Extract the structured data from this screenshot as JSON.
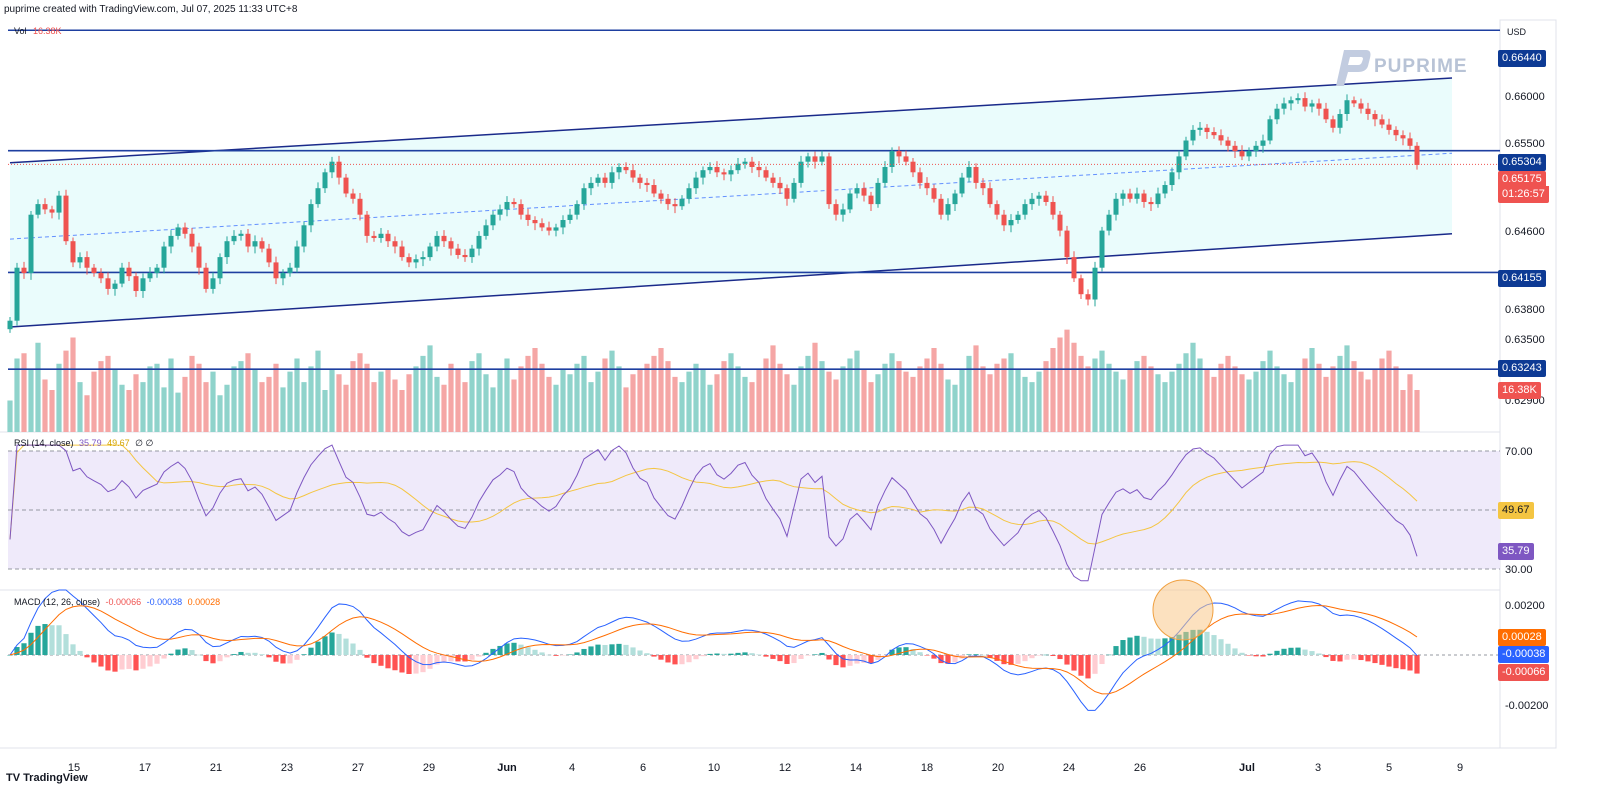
{
  "header": {
    "credit": "puprime created with TradingView.com, Jul 07, 2025 11:33 UTC+8"
  },
  "currency": "USD",
  "brand": {
    "name": "PUPRIME"
  },
  "footer": {
    "logo": "TradingView"
  },
  "volume": {
    "label": "Vol",
    "value": "16.38K",
    "badge": "16.38K"
  },
  "rsi": {
    "label": "RSI (14, close)",
    "value": "35.79",
    "ma": "49.67",
    "extra": "∅ ∅",
    "levels": [
      "70.00",
      "30.00"
    ],
    "badge_ma": "49.67",
    "badge_value": "35.79"
  },
  "macd": {
    "label": "MACD (12, 26, close)",
    "hist": "-0.00066",
    "macd": "-0.00038",
    "signal": "0.00028",
    "axis": [
      "0.00200",
      "-0.00200"
    ],
    "badge_signal": "0.00028",
    "badge_macd": "-0.00038",
    "badge_hist": "-0.00066"
  },
  "price_labels": {
    "r1": "0.66440",
    "r2": "0.65304",
    "current": "0.65175",
    "countdown": "01:26:57",
    "s1": "0.64155",
    "s2": "0.63243"
  },
  "price_axis": [
    "0.66000",
    "0.65500",
    "0.64600",
    "0.63800",
    "0.63500",
    "0.62900"
  ],
  "colors": {
    "up": "#26a69a",
    "down": "#ef5350",
    "level": "#1e3fa0",
    "rsi": "#7e57c2",
    "rsi_ma": "#f4c542",
    "macd": "#2962ff",
    "signal": "#ff6d00",
    "channel_fill": "#e6fbfb",
    "badge_blue": "#0d3a94"
  },
  "chart_data": {
    "type": "candlestick",
    "symbol": "",
    "x_ticks": [
      "15",
      "17",
      "21",
      "23",
      "27",
      "29",
      "Jun",
      "4",
      "6",
      "10",
      "12",
      "14",
      "18",
      "20",
      "24",
      "26",
      "Jul",
      "3",
      "5",
      "9"
    ],
    "levels": [
      0.6644,
      0.65304,
      0.64155,
      0.63243
    ],
    "last_price": 0.65175,
    "ylim": [
      0.6265,
      0.6665
    ],
    "channel": {
      "upper": [
        [
          0,
          0.6519
        ],
        [
          206,
          0.6599
        ]
      ],
      "lower": [
        [
          0,
          0.6364
        ],
        [
          206,
          0.6452
        ]
      ],
      "mid": [
        [
          0,
          0.6447
        ],
        [
          206,
          0.6528
        ]
      ]
    },
    "close": [
      0.637,
      0.642,
      0.6415,
      0.647,
      0.648,
      0.6475,
      0.6472,
      0.6488,
      0.6445,
      0.6425,
      0.643,
      0.642,
      0.6415,
      0.641,
      0.64,
      0.6405,
      0.642,
      0.6412,
      0.6398,
      0.641,
      0.6415,
      0.642,
      0.644,
      0.645,
      0.6458,
      0.6452,
      0.644,
      0.642,
      0.64,
      0.641,
      0.643,
      0.6445,
      0.645,
      0.6452,
      0.644,
      0.6445,
      0.6438,
      0.6425,
      0.641,
      0.6415,
      0.642,
      0.644,
      0.646,
      0.648,
      0.6495,
      0.651,
      0.652,
      0.6505,
      0.649,
      0.6485,
      0.647,
      0.645,
      0.6448,
      0.6452,
      0.6445,
      0.644,
      0.643,
      0.6425,
      0.6428,
      0.643,
      0.644,
      0.645,
      0.6445,
      0.6438,
      0.6432,
      0.643,
      0.6438,
      0.645,
      0.646,
      0.647,
      0.6475,
      0.6482,
      0.648,
      0.647,
      0.6465,
      0.6462,
      0.6458,
      0.6455,
      0.6458,
      0.6465,
      0.647,
      0.648,
      0.6495,
      0.65,
      0.6505,
      0.65,
      0.651,
      0.6515,
      0.6512,
      0.6505,
      0.65,
      0.6498,
      0.649,
      0.6485,
      0.648,
      0.6478,
      0.6485,
      0.6495,
      0.6505,
      0.6512,
      0.6515,
      0.651,
      0.6508,
      0.6512,
      0.6518,
      0.652,
      0.6515,
      0.6512,
      0.6505,
      0.65,
      0.6495,
      0.6485,
      0.65,
      0.652,
      0.6525,
      0.652,
      0.6525,
      0.648,
      0.647,
      0.6475,
      0.649,
      0.6495,
      0.6488,
      0.648,
      0.65,
      0.6515,
      0.653,
      0.6525,
      0.652,
      0.651,
      0.65,
      0.6495,
      0.6485,
      0.647,
      0.648,
      0.649,
      0.6505,
      0.6515,
      0.65,
      0.6495,
      0.648,
      0.647,
      0.646,
      0.6465,
      0.647,
      0.648,
      0.6485,
      0.6488,
      0.6482,
      0.647,
      0.6455,
      0.643,
      0.641,
      0.6395,
      0.639,
      0.642,
      0.6455,
      0.647,
      0.6485,
      0.649,
      0.6485,
      0.649,
      0.6482,
      0.648,
      0.649,
      0.6498,
      0.651,
      0.6525,
      0.654,
      0.655,
      0.6552,
      0.6548,
      0.6545,
      0.654,
      0.6535,
      0.653,
      0.6525,
      0.653,
      0.6535,
      0.654,
      0.656,
      0.657,
      0.6575,
      0.6578,
      0.658,
      0.6572,
      0.6575,
      0.657,
      0.656,
      0.6552,
      0.6565,
      0.6578,
      0.6575,
      0.657,
      0.6565,
      0.656,
      0.6555,
      0.655,
      0.6545,
      0.6542,
      0.6535,
      0.6517
    ],
    "volume": [
      1.2,
      2.8,
      3.0,
      2.4,
      3.4,
      2.0,
      1.6,
      2.6,
      3.1,
      3.6,
      1.9,
      1.4,
      2.3,
      2.7,
      2.9,
      2.4,
      1.8,
      1.6,
      2.2,
      1.9,
      2.5,
      2.6,
      1.7,
      2.8,
      1.5,
      2.1,
      2.9,
      2.6,
      1.9,
      2.3,
      1.4,
      1.8,
      2.5,
      2.7,
      3.0,
      2.4,
      1.9,
      2.1,
      2.6,
      1.7,
      2.3,
      2.8,
      1.9,
      2.5,
      3.1,
      1.6,
      2.4,
      2.2,
      1.8,
      2.7,
      3.0,
      2.6,
      1.9,
      2.3,
      2.4,
      2.0,
      1.6,
      2.2,
      2.5,
      2.9,
      3.3,
      2.1,
      1.8,
      2.6,
      2.4,
      1.9,
      2.7,
      3.0,
      2.2,
      1.7,
      2.4,
      2.8,
      2.0,
      2.5,
      2.9,
      3.2,
      2.6,
      2.1,
      1.8,
      2.4,
      2.2,
      2.6,
      2.9,
      1.9,
      2.3,
      2.8,
      3.1,
      2.5,
      1.7,
      2.2,
      2.4,
      2.6,
      2.9,
      3.2,
      2.7,
      2.1,
      1.9,
      2.3,
      2.6,
      2.4,
      1.8,
      2.2,
      2.7,
      3.0,
      2.5,
      2.1,
      1.9,
      2.4,
      2.8,
      3.3,
      2.6,
      2.2,
      1.8,
      2.5,
      2.9,
      3.4,
      2.7,
      2.3,
      2.0,
      2.5,
      2.8,
      3.1,
      2.4,
      1.9,
      2.2,
      2.6,
      3.0,
      2.7,
      2.3,
      2.1,
      2.5,
      2.8,
      3.2,
      2.6,
      2.0,
      1.8,
      2.4,
      2.9,
      3.3,
      2.5,
      2.2,
      2.6,
      2.8,
      3.0,
      2.4,
      2.1,
      1.9,
      2.3,
      2.7,
      3.2,
      3.6,
      3.9,
      3.4,
      2.9,
      2.5,
      2.8,
      3.1,
      2.6,
      2.3,
      2.0,
      2.4,
      2.7,
      2.9,
      2.5,
      2.2,
      1.9,
      2.3,
      2.6,
      3.0,
      3.4,
      2.8,
      2.4,
      2.1,
      2.6,
      2.9,
      2.5,
      2.2,
      2.0,
      2.3,
      2.7,
      3.1,
      2.5,
      2.2,
      1.9,
      2.4,
      2.8,
      3.2,
      2.6,
      2.1,
      2.5,
      2.9,
      3.3,
      2.7,
      2.3,
      2.0,
      2.4,
      2.8,
      3.1,
      2.5,
      1.6,
      2.2,
      1.6
    ]
  }
}
